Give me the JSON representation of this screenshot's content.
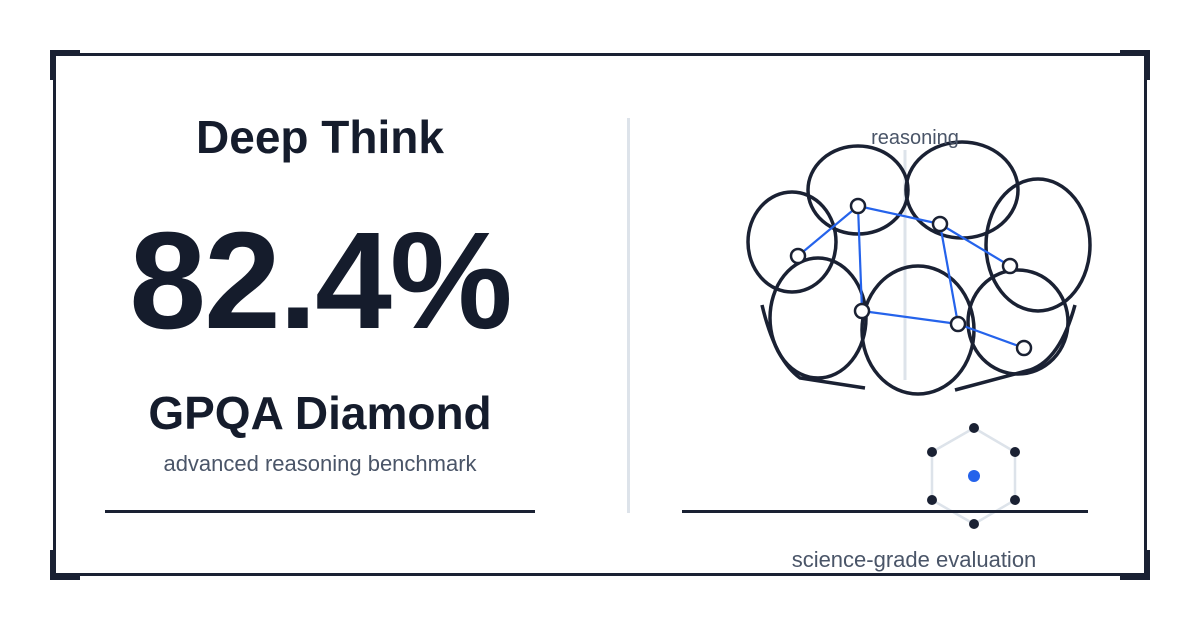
{
  "brand": {
    "title": "Deep Think"
  },
  "stat": {
    "value": "82.4%"
  },
  "benchmark": {
    "name": "GPQA Diamond",
    "description": "advanced reasoning benchmark"
  },
  "illustration": {
    "top_label": "reasoning",
    "bottom_label": "science-grade evaluation",
    "icon": "brain-network-icon",
    "badge_icon": "hexagon-molecule-icon"
  },
  "colors": {
    "ink": "#151c2c",
    "muted": "#4a5568",
    "accent": "#2563eb",
    "divider": "#dde3ea"
  }
}
